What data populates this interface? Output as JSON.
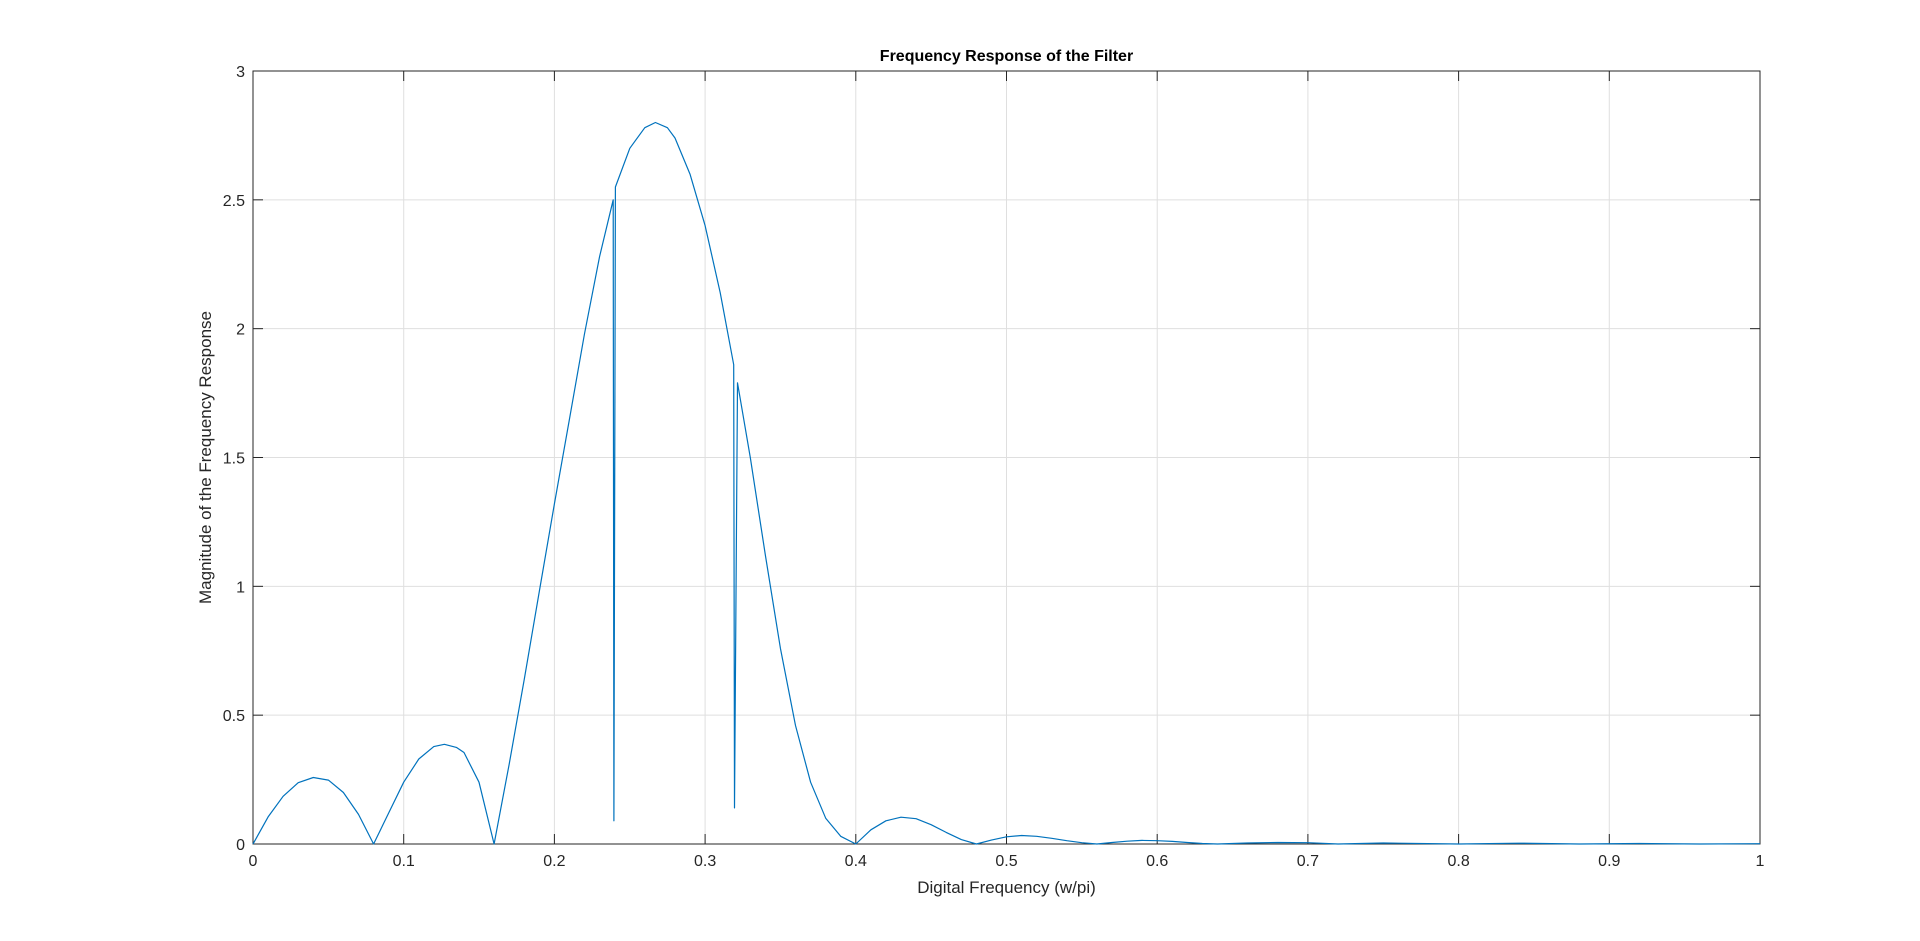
{
  "chart_data": {
    "type": "line",
    "title": "Frequency Response of the Filter",
    "xlabel": "Digital Frequency (w/pi)",
    "ylabel": "Magnitude of the Frequency Response",
    "xlim": [
      0,
      1
    ],
    "ylim": [
      0,
      3
    ],
    "grid": true,
    "xticks": [
      0,
      0.1,
      0.2,
      0.3,
      0.4,
      0.5,
      0.6,
      0.7,
      0.8,
      0.9,
      1
    ],
    "xtick_labels": [
      "0",
      "0.1",
      "0.2",
      "0.3",
      "0.4",
      "0.5",
      "0.6",
      "0.7",
      "0.8",
      "0.9",
      "1"
    ],
    "yticks": [
      0,
      0.5,
      1,
      1.5,
      2,
      2.5,
      3
    ],
    "ytick_labels": [
      "0",
      "0.5",
      "1",
      "1.5",
      "2",
      "2.5",
      "3"
    ],
    "series": [
      {
        "color": "#0072bd",
        "points": [
          [
            0,
            0
          ],
          [
            0.01,
            0.105
          ],
          [
            0.02,
            0.185
          ],
          [
            0.03,
            0.238
          ],
          [
            0.04,
            0.258
          ],
          [
            0.05,
            0.248
          ],
          [
            0.06,
            0.2
          ],
          [
            0.07,
            0.115
          ],
          [
            0.08,
            0
          ],
          [
            0.09,
            0.12
          ],
          [
            0.1,
            0.24
          ],
          [
            0.11,
            0.33
          ],
          [
            0.12,
            0.378
          ],
          [
            0.127,
            0.387
          ],
          [
            0.135,
            0.375
          ],
          [
            0.14,
            0.355
          ],
          [
            0.15,
            0.24
          ],
          [
            0.16,
            0
          ],
          [
            0.17,
            0.31
          ],
          [
            0.18,
            0.64
          ],
          [
            0.19,
            0.98
          ],
          [
            0.2,
            1.32
          ],
          [
            0.21,
            1.65
          ],
          [
            0.22,
            1.98
          ],
          [
            0.23,
            2.28
          ],
          [
            0.239,
            2.5
          ],
          [
            0.2395,
            0.09
          ],
          [
            0.2405,
            2.55
          ],
          [
            0.25,
            2.7
          ],
          [
            0.26,
            2.78
          ],
          [
            0.267,
            2.8
          ],
          [
            0.275,
            2.78
          ],
          [
            0.28,
            2.74
          ],
          [
            0.29,
            2.6
          ],
          [
            0.3,
            2.4
          ],
          [
            0.31,
            2.14
          ],
          [
            0.319,
            1.86
          ],
          [
            0.3195,
            0.14
          ],
          [
            0.3215,
            1.79
          ],
          [
            0.33,
            1.5
          ],
          [
            0.34,
            1.12
          ],
          [
            0.35,
            0.76
          ],
          [
            0.36,
            0.46
          ],
          [
            0.37,
            0.24
          ],
          [
            0.38,
            0.1
          ],
          [
            0.39,
            0.03
          ],
          [
            0.4,
            0
          ],
          [
            0.41,
            0.055
          ],
          [
            0.42,
            0.09
          ],
          [
            0.43,
            0.104
          ],
          [
            0.44,
            0.098
          ],
          [
            0.45,
            0.075
          ],
          [
            0.46,
            0.045
          ],
          [
            0.47,
            0.017
          ],
          [
            0.48,
            0
          ],
          [
            0.49,
            0.015
          ],
          [
            0.5,
            0.028
          ],
          [
            0.51,
            0.033
          ],
          [
            0.52,
            0.03
          ],
          [
            0.53,
            0.022
          ],
          [
            0.54,
            0.013
          ],
          [
            0.55,
            0.005
          ],
          [
            0.56,
            0
          ],
          [
            0.57,
            0.006
          ],
          [
            0.58,
            0.011
          ],
          [
            0.59,
            0.014
          ],
          [
            0.6,
            0.013
          ],
          [
            0.61,
            0.01
          ],
          [
            0.62,
            0.006
          ],
          [
            0.63,
            0.002
          ],
          [
            0.64,
            0
          ],
          [
            0.66,
            0.004
          ],
          [
            0.68,
            0.006
          ],
          [
            0.7,
            0.005
          ],
          [
            0.72,
            0
          ],
          [
            0.75,
            0.004
          ],
          [
            0.8,
            0
          ],
          [
            0.84,
            0.003
          ],
          [
            0.88,
            0
          ],
          [
            0.92,
            0.002
          ],
          [
            0.96,
            0
          ],
          [
            1,
            0.001
          ]
        ]
      }
    ]
  }
}
